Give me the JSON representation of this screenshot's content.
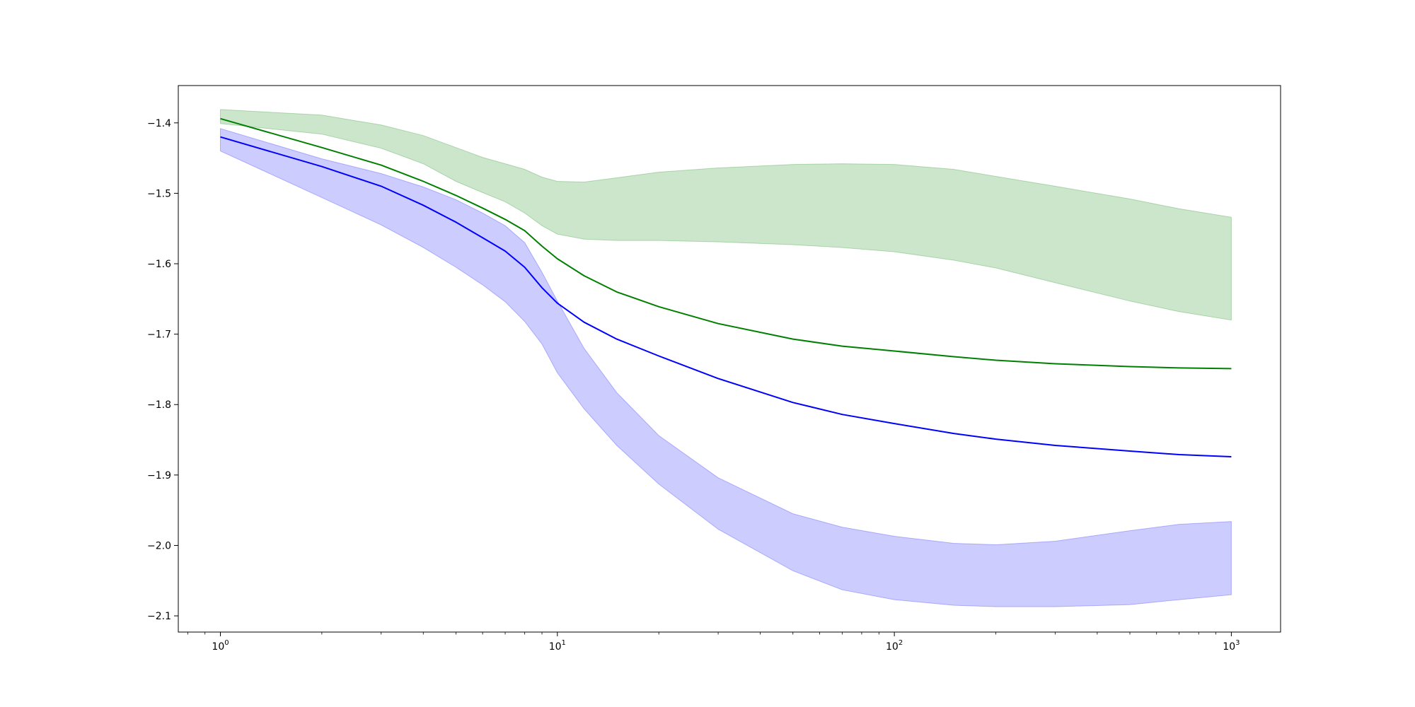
{
  "chart_data": {
    "type": "line",
    "title": "",
    "xlabel": "",
    "ylabel": "",
    "xscale": "log",
    "xlim": [
      0.75,
      1400
    ],
    "ylim": [
      -2.123,
      -1.347
    ],
    "grid": false,
    "x_ticks": [
      {
        "value": 1,
        "base": "10",
        "exp": "0"
      },
      {
        "value": 10,
        "base": "10",
        "exp": "1"
      },
      {
        "value": 100,
        "base": "10",
        "exp": "2"
      },
      {
        "value": 1000,
        "base": "10",
        "exp": "3"
      }
    ],
    "y_ticks": [
      {
        "value": -1.4,
        "label": "−1.4"
      },
      {
        "value": -1.5,
        "label": "−1.5"
      },
      {
        "value": -1.6,
        "label": "−1.6"
      },
      {
        "value": -1.7,
        "label": "−1.7"
      },
      {
        "value": -1.8,
        "label": "−1.8"
      },
      {
        "value": -1.9,
        "label": "−1.9"
      },
      {
        "value": -2.0,
        "label": "−2.0"
      },
      {
        "value": -2.1,
        "label": "−2.1"
      }
    ],
    "series": [
      {
        "color": "#008000",
        "band_color": "#008000",
        "band_opacity": 0.2,
        "x": [
          1,
          2,
          3,
          4,
          5,
          6,
          7,
          8,
          9,
          10,
          12,
          15,
          20,
          30,
          50,
          70,
          100,
          150,
          200,
          300,
          500,
          700,
          1000
        ],
        "y": [
          -1.394,
          -1.435,
          -1.46,
          -1.483,
          -1.503,
          -1.521,
          -1.537,
          -1.553,
          -1.575,
          -1.593,
          -1.617,
          -1.64,
          -1.661,
          -1.685,
          -1.707,
          -1.717,
          -1.724,
          -1.732,
          -1.737,
          -1.742,
          -1.746,
          -1.748,
          -1.749
        ],
        "upper": [
          -1.381,
          -1.389,
          -1.403,
          -1.418,
          -1.435,
          -1.449,
          -1.458,
          -1.466,
          -1.477,
          -1.483,
          -1.484,
          -1.478,
          -1.47,
          -1.464,
          -1.459,
          -1.458,
          -1.459,
          -1.466,
          -1.476,
          -1.49,
          -1.508,
          -1.522,
          -1.534
        ],
        "lower": [
          -1.401,
          -1.416,
          -1.436,
          -1.458,
          -1.483,
          -1.499,
          -1.512,
          -1.528,
          -1.546,
          -1.558,
          -1.565,
          -1.567,
          -1.567,
          -1.569,
          -1.573,
          -1.577,
          -1.583,
          -1.595,
          -1.606,
          -1.627,
          -1.653,
          -1.668,
          -1.68
        ]
      },
      {
        "color": "#0000ff",
        "band_color": "#0000ff",
        "band_opacity": 0.2,
        "x": [
          1,
          2,
          3,
          4,
          5,
          6,
          7,
          8,
          9,
          10,
          12,
          15,
          20,
          30,
          50,
          70,
          100,
          150,
          200,
          300,
          500,
          700,
          1000
        ],
        "y": [
          -1.42,
          -1.462,
          -1.49,
          -1.517,
          -1.541,
          -1.563,
          -1.582,
          -1.605,
          -1.634,
          -1.656,
          -1.683,
          -1.707,
          -1.731,
          -1.763,
          -1.797,
          -1.814,
          -1.827,
          -1.841,
          -1.849,
          -1.858,
          -1.866,
          -1.871,
          -1.874
        ],
        "upper": [
          -1.408,
          -1.451,
          -1.472,
          -1.491,
          -1.509,
          -1.528,
          -1.546,
          -1.57,
          -1.612,
          -1.653,
          -1.72,
          -1.783,
          -1.844,
          -1.904,
          -1.955,
          -1.974,
          -1.987,
          -1.997,
          -1.999,
          -1.994,
          -1.979,
          -1.97,
          -1.966
        ],
        "lower": [
          -1.44,
          -1.506,
          -1.545,
          -1.577,
          -1.605,
          -1.63,
          -1.654,
          -1.682,
          -1.714,
          -1.755,
          -1.806,
          -1.858,
          -1.913,
          -1.977,
          -2.036,
          -2.063,
          -2.077,
          -2.085,
          -2.087,
          -2.087,
          -2.084,
          -2.077,
          -2.07
        ]
      }
    ]
  }
}
